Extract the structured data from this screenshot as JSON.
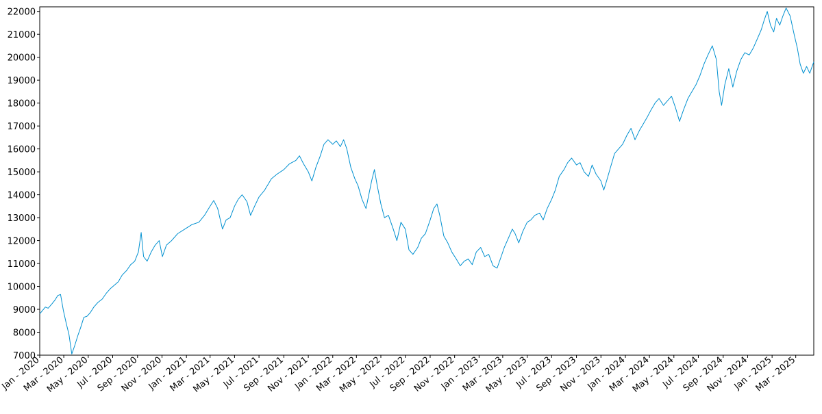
{
  "chart_data": {
    "type": "line",
    "title": "",
    "xlabel": "",
    "ylabel": "",
    "grid": false,
    "line_color": "#0090d0",
    "x_range": [
      "2020-01-01",
      "2025-04-15"
    ],
    "ylim": [
      7000,
      22200
    ],
    "y_ticks": [
      7000,
      8000,
      9000,
      10000,
      11000,
      12000,
      13000,
      14000,
      15000,
      16000,
      17000,
      18000,
      19000,
      20000,
      21000,
      22000
    ],
    "x_tick_labels": [
      "Jan - 2020",
      "Mar - 2020",
      "May - 2020",
      "Jul - 2020",
      "Sep - 2020",
      "Nov - 2020",
      "Jan - 2021",
      "Mar - 2021",
      "May - 2021",
      "Jul - 2021",
      "Sep - 2021",
      "Nov - 2021",
      "Jan - 2022",
      "Mar - 2022",
      "May - 2022",
      "Jul - 2022",
      "Sep - 2022",
      "Nov - 2022",
      "Jan - 2023",
      "Mar - 2023",
      "May - 2023",
      "Jul - 2023",
      "Sep - 2023",
      "Nov - 2023",
      "Jan - 2024",
      "Mar - 2024",
      "May - 2024",
      "Jul - 2024",
      "Sep - 2024",
      "Nov - 2024",
      "Jan - 2025",
      "Mar - 2025"
    ],
    "x_tick_dates": [
      "2020-01-01",
      "2020-03-01",
      "2020-05-01",
      "2020-07-01",
      "2020-09-01",
      "2020-11-01",
      "2021-01-01",
      "2021-03-01",
      "2021-05-01",
      "2021-07-01",
      "2021-09-01",
      "2021-11-01",
      "2022-01-01",
      "2022-03-01",
      "2022-05-01",
      "2022-07-01",
      "2022-09-01",
      "2022-11-01",
      "2023-01-01",
      "2023-03-01",
      "2023-05-01",
      "2023-07-01",
      "2023-09-01",
      "2023-11-01",
      "2024-01-01",
      "2024-03-01",
      "2024-05-01",
      "2024-07-01",
      "2024-09-01",
      "2024-11-01",
      "2025-01-01",
      "2025-03-01"
    ],
    "series": [
      {
        "points": [
          [
            "2020-01-01",
            8800
          ],
          [
            "2020-01-08",
            8950
          ],
          [
            "2020-01-15",
            9100
          ],
          [
            "2020-01-22",
            9050
          ],
          [
            "2020-02-01",
            9250
          ],
          [
            "2020-02-08",
            9400
          ],
          [
            "2020-02-15",
            9600
          ],
          [
            "2020-02-22",
            9650
          ],
          [
            "2020-02-29",
            8950
          ],
          [
            "2020-03-07",
            8400
          ],
          [
            "2020-03-14",
            7900
          ],
          [
            "2020-03-21",
            7050
          ],
          [
            "2020-03-28",
            7400
          ],
          [
            "2020-04-05",
            7850
          ],
          [
            "2020-04-12",
            8200
          ],
          [
            "2020-04-20",
            8650
          ],
          [
            "2020-04-28",
            8700
          ],
          [
            "2020-05-06",
            8850
          ],
          [
            "2020-05-15",
            9100
          ],
          [
            "2020-05-25",
            9300
          ],
          [
            "2020-06-05",
            9450
          ],
          [
            "2020-06-15",
            9700
          ],
          [
            "2020-06-25",
            9900
          ],
          [
            "2020-07-05",
            10050
          ],
          [
            "2020-07-15",
            10200
          ],
          [
            "2020-07-25",
            10500
          ],
          [
            "2020-08-05",
            10700
          ],
          [
            "2020-08-15",
            10950
          ],
          [
            "2020-08-25",
            11100
          ],
          [
            "2020-09-03",
            11500
          ],
          [
            "2020-09-10",
            12350
          ],
          [
            "2020-09-16",
            11300
          ],
          [
            "2020-09-25",
            11100
          ],
          [
            "2020-10-05",
            11500
          ],
          [
            "2020-10-15",
            11800
          ],
          [
            "2020-10-25",
            12000
          ],
          [
            "2020-11-02",
            11300
          ],
          [
            "2020-11-12",
            11800
          ],
          [
            "2020-11-25",
            12000
          ],
          [
            "2020-12-10",
            12300
          ],
          [
            "2020-12-28",
            12500
          ],
          [
            "2021-01-15",
            12700
          ],
          [
            "2021-02-01",
            12800
          ],
          [
            "2021-02-15",
            13100
          ],
          [
            "2021-03-01",
            13500
          ],
          [
            "2021-03-10",
            13750
          ],
          [
            "2021-03-20",
            13400
          ],
          [
            "2021-04-01",
            12500
          ],
          [
            "2021-04-10",
            12900
          ],
          [
            "2021-04-20",
            13000
          ],
          [
            "2021-05-01",
            13500
          ],
          [
            "2021-05-10",
            13800
          ],
          [
            "2021-05-20",
            14000
          ],
          [
            "2021-06-01",
            13700
          ],
          [
            "2021-06-10",
            13100
          ],
          [
            "2021-06-20",
            13500
          ],
          [
            "2021-07-01",
            13900
          ],
          [
            "2021-07-15",
            14200
          ],
          [
            "2021-08-01",
            14700
          ],
          [
            "2021-08-15",
            14900
          ],
          [
            "2021-09-01",
            15100
          ],
          [
            "2021-09-15",
            15350
          ],
          [
            "2021-10-01",
            15500
          ],
          [
            "2021-10-10",
            15700
          ],
          [
            "2021-10-20",
            15350
          ],
          [
            "2021-11-01",
            15000
          ],
          [
            "2021-11-10",
            14600
          ],
          [
            "2021-11-20",
            15200
          ],
          [
            "2021-12-01",
            15700
          ],
          [
            "2021-12-10",
            16200
          ],
          [
            "2021-12-20",
            16400
          ],
          [
            "2022-01-01",
            16200
          ],
          [
            "2022-01-10",
            16350
          ],
          [
            "2022-01-20",
            16100
          ],
          [
            "2022-01-28",
            16400
          ],
          [
            "2022-02-05",
            16000
          ],
          [
            "2022-02-15",
            15200
          ],
          [
            "2022-02-25",
            14700
          ],
          [
            "2022-03-05",
            14400
          ],
          [
            "2022-03-15",
            13800
          ],
          [
            "2022-03-25",
            13400
          ],
          [
            "2022-04-01",
            14000
          ],
          [
            "2022-04-08",
            14600
          ],
          [
            "2022-04-15",
            15100
          ],
          [
            "2022-04-22",
            14400
          ],
          [
            "2022-05-01",
            13600
          ],
          [
            "2022-05-10",
            13000
          ],
          [
            "2022-05-20",
            13100
          ],
          [
            "2022-06-01",
            12500
          ],
          [
            "2022-06-10",
            12000
          ],
          [
            "2022-06-20",
            12800
          ],
          [
            "2022-07-01",
            12500
          ],
          [
            "2022-07-10",
            11600
          ],
          [
            "2022-07-20",
            11400
          ],
          [
            "2022-08-01",
            11700
          ],
          [
            "2022-08-10",
            12100
          ],
          [
            "2022-08-20",
            12300
          ],
          [
            "2022-09-01",
            12900
          ],
          [
            "2022-09-10",
            13400
          ],
          [
            "2022-09-18",
            13600
          ],
          [
            "2022-09-25",
            13100
          ],
          [
            "2022-10-05",
            12200
          ],
          [
            "2022-10-15",
            11900
          ],
          [
            "2022-10-25",
            11500
          ],
          [
            "2022-11-05",
            11200
          ],
          [
            "2022-11-15",
            10900
          ],
          [
            "2022-11-25",
            11100
          ],
          [
            "2022-12-05",
            11200
          ],
          [
            "2022-12-15",
            10950
          ],
          [
            "2022-12-25",
            11500
          ],
          [
            "2023-01-05",
            11700
          ],
          [
            "2023-01-15",
            11300
          ],
          [
            "2023-01-25",
            11400
          ],
          [
            "2023-02-05",
            10900
          ],
          [
            "2023-02-15",
            10800
          ],
          [
            "2023-02-25",
            11300
          ],
          [
            "2023-03-05",
            11700
          ],
          [
            "2023-03-15",
            12100
          ],
          [
            "2023-03-25",
            12500
          ],
          [
            "2023-04-01",
            12300
          ],
          [
            "2023-04-10",
            11900
          ],
          [
            "2023-04-20",
            12400
          ],
          [
            "2023-05-01",
            12800
          ],
          [
            "2023-05-10",
            12900
          ],
          [
            "2023-05-20",
            13100
          ],
          [
            "2023-06-01",
            13200
          ],
          [
            "2023-06-10",
            12900
          ],
          [
            "2023-06-20",
            13400
          ],
          [
            "2023-07-01",
            13800
          ],
          [
            "2023-07-10",
            14200
          ],
          [
            "2023-07-20",
            14800
          ],
          [
            "2023-08-01",
            15100
          ],
          [
            "2023-08-10",
            15400
          ],
          [
            "2023-08-20",
            15600
          ],
          [
            "2023-09-01",
            15300
          ],
          [
            "2023-09-10",
            15400
          ],
          [
            "2023-09-20",
            15000
          ],
          [
            "2023-10-01",
            14800
          ],
          [
            "2023-10-10",
            15300
          ],
          [
            "2023-10-20",
            14900
          ],
          [
            "2023-11-01",
            14600
          ],
          [
            "2023-11-08",
            14200
          ],
          [
            "2023-11-15",
            14600
          ],
          [
            "2023-11-25",
            15200
          ],
          [
            "2023-12-05",
            15800
          ],
          [
            "2023-12-15",
            16000
          ],
          [
            "2023-12-25",
            16200
          ],
          [
            "2024-01-05",
            16600
          ],
          [
            "2024-01-15",
            16900
          ],
          [
            "2024-01-25",
            16400
          ],
          [
            "2024-02-05",
            16800
          ],
          [
            "2024-02-15",
            17100
          ],
          [
            "2024-02-25",
            17400
          ],
          [
            "2024-03-05",
            17700
          ],
          [
            "2024-03-15",
            18000
          ],
          [
            "2024-03-25",
            18200
          ],
          [
            "2024-04-05",
            17900
          ],
          [
            "2024-04-15",
            18100
          ],
          [
            "2024-04-25",
            18300
          ],
          [
            "2024-05-05",
            17800
          ],
          [
            "2024-05-15",
            17200
          ],
          [
            "2024-05-25",
            17700
          ],
          [
            "2024-06-05",
            18200
          ],
          [
            "2024-06-15",
            18500
          ],
          [
            "2024-06-25",
            18800
          ],
          [
            "2024-07-05",
            19200
          ],
          [
            "2024-07-15",
            19700
          ],
          [
            "2024-07-25",
            20100
          ],
          [
            "2024-08-05",
            20500
          ],
          [
            "2024-08-15",
            19900
          ],
          [
            "2024-08-22",
            18500
          ],
          [
            "2024-08-28",
            17900
          ],
          [
            "2024-09-05",
            18800
          ],
          [
            "2024-09-15",
            19500
          ],
          [
            "2024-09-25",
            18700
          ],
          [
            "2024-10-05",
            19400
          ],
          [
            "2024-10-15",
            19900
          ],
          [
            "2024-10-25",
            20200
          ],
          [
            "2024-11-05",
            20100
          ],
          [
            "2024-11-15",
            20400
          ],
          [
            "2024-11-25",
            20800
          ],
          [
            "2024-12-05",
            21200
          ],
          [
            "2024-12-12",
            21600
          ],
          [
            "2024-12-20",
            22000
          ],
          [
            "2024-12-28",
            21400
          ],
          [
            "2025-01-05",
            21100
          ],
          [
            "2025-01-12",
            21700
          ],
          [
            "2025-01-20",
            21400
          ],
          [
            "2025-01-28",
            21800
          ],
          [
            "2025-02-05",
            22150
          ],
          [
            "2025-02-15",
            21800
          ],
          [
            "2025-02-25",
            21000
          ],
          [
            "2025-03-05",
            20400
          ],
          [
            "2025-03-12",
            19700
          ],
          [
            "2025-03-20",
            19300
          ],
          [
            "2025-03-28",
            19600
          ],
          [
            "2025-04-05",
            19300
          ],
          [
            "2025-04-15",
            19800
          ]
        ]
      }
    ]
  }
}
